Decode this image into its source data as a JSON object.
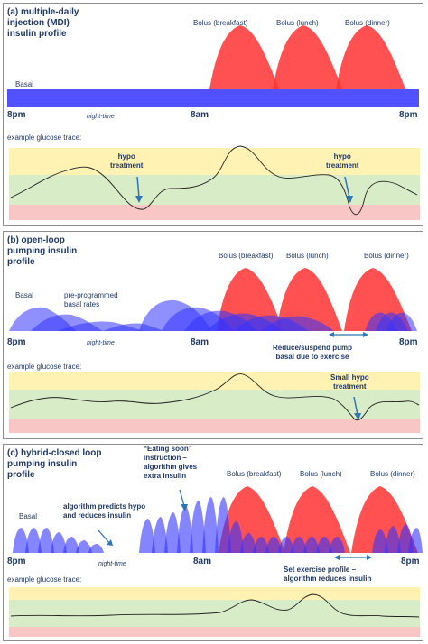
{
  "panels": {
    "a": {
      "title": "(a) multiple-daily\ninjection (MDI)\ninsulin profile",
      "basal_label": "Basal",
      "bolus_labels": [
        "Bolus (breakfast)",
        "Bolus (lunch)",
        "Bolus (dinner)"
      ],
      "time_labels": [
        "8pm",
        "8am",
        "8pm"
      ],
      "night_label": "night-time",
      "glucose_label": "example glucose trace:",
      "annotations": [
        "hypo\ntreatment",
        "hypo\ntreatment"
      ]
    },
    "b": {
      "title": "(b) open-loop\npumping insulin\nprofile",
      "basal_label": "Basal",
      "preprog_label": "pre-programmed\nbasal rates",
      "bolus_labels": [
        "Bolus (breakfast)",
        "Bolus (lunch)",
        "Bolus (dinner)"
      ],
      "time_labels": [
        "8pm",
        "8am",
        "8pm"
      ],
      "night_label": "night-time",
      "exercise_label": "Reduce/suspend pump\nbasal due to exercise",
      "glucose_label": "example glucose trace:",
      "annotations": [
        "Small hypo\ntreatment"
      ]
    },
    "c": {
      "title": "(c) hybrid-closed loop\npumping insulin\nprofile",
      "basal_label": "Basal",
      "predict_label": "algorithm predicts hypo\nand reduces insulin",
      "eating_label": "“Eating soon”\ninstruction –\nalgorithm gives\nextra insulin",
      "bolus_labels": [
        "Bolus (breakfast)",
        "Bolus (lunch)",
        "Bolus (dinner)"
      ],
      "time_labels": [
        "8pm",
        "8am",
        "8pm"
      ],
      "night_label": "night-time",
      "exercise_label": "Set exercise profile –\nalgorithm reduces insulin",
      "glucose_label": "example glucose trace:"
    }
  },
  "colors": {
    "basal": "#3333ff",
    "bolus": "#ff3333",
    "high_band": "#fff2b3",
    "target_band": "#d9ecc8",
    "low_band": "#f9c6c6",
    "arrow": "#2e75b6",
    "text": "#1f3864"
  }
}
